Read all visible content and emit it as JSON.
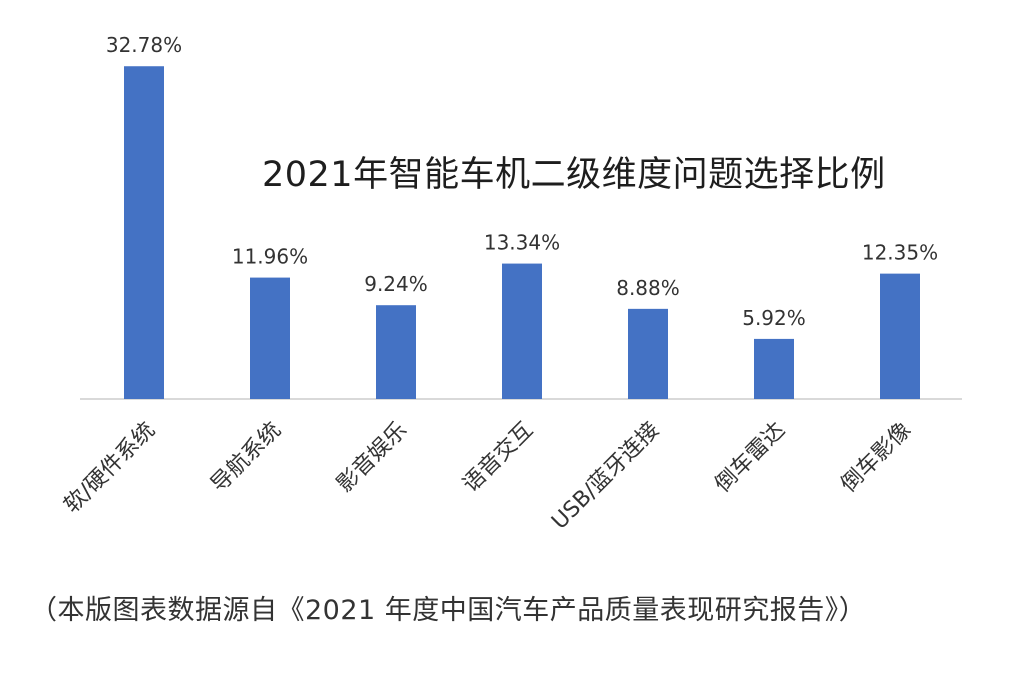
{
  "chart_data": {
    "type": "bar",
    "title": "2021年智能车机二级维度问题选择比例",
    "categories": [
      "软/硬件系统",
      "导航系统",
      "影音娱乐",
      "语音交互",
      "USB/蓝牙连接",
      "倒车雷达",
      "倒车影像"
    ],
    "values": [
      32.78,
      11.96,
      9.24,
      13.34,
      8.88,
      5.92,
      12.35
    ],
    "data_labels": [
      "32.78%",
      "11.96%",
      "9.24%",
      "13.34%",
      "8.88%",
      "5.92%",
      "12.35%"
    ],
    "unit": "%",
    "xlabel": "",
    "ylabel": "",
    "ylim": [
      0,
      33
    ],
    "grid": false,
    "legend": "none",
    "bar_color": "#4472c4",
    "axis_color": "#d9d9d9"
  },
  "source_note": "（本版图表数据源自《2021 年度中国汽车产品质量表现研究报告》）"
}
